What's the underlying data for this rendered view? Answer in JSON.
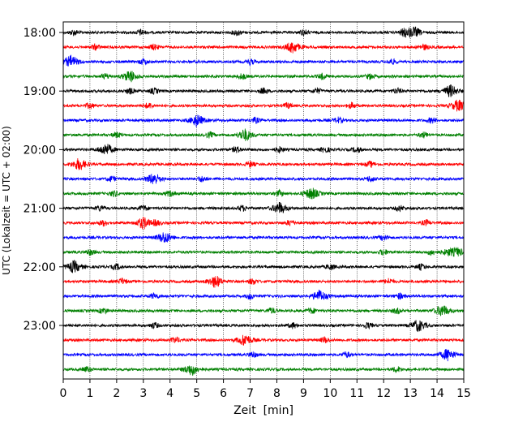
{
  "chart_data": {
    "type": "line",
    "title": "",
    "xlabel": "Zeit  [min]",
    "ylabel": "UTC (Lokalzeit = UTC + 02:00)",
    "xlim": [
      0,
      15
    ],
    "x_ticks": [
      "0",
      "1",
      "2",
      "3",
      "4",
      "5",
      "6",
      "7",
      "8",
      "9",
      "10",
      "11",
      "12",
      "13",
      "14",
      "15"
    ],
    "y_tick_labels": [
      "18:00",
      "19:00",
      "20:00",
      "21:00",
      "22:00",
      "23:00"
    ],
    "row_start_time": "18:00",
    "row_interval_minutes": 15,
    "trace_colors": [
      "#000000",
      "#ff0000",
      "#0000ff",
      "#008000"
    ],
    "vertical_grid": "dotted",
    "series": [
      {
        "row_start": "18:00",
        "color": "#000000",
        "events_min": [
          0.4,
          2.9,
          6.5,
          9.0,
          12.8,
          13.2
        ],
        "max_amplitude_min": 13.0
      },
      {
        "row_start": "18:15",
        "color": "#ff0000",
        "events_min": [
          1.2,
          3.4,
          8.6,
          13.5
        ],
        "max_amplitude_min": 8.6
      },
      {
        "row_start": "18:30",
        "color": "#0000ff",
        "events_min": [
          0.3,
          3.0,
          7.0,
          12.3
        ],
        "max_amplitude_min": 0.3
      },
      {
        "row_start": "18:45",
        "color": "#008000",
        "events_min": [
          1.6,
          2.5,
          6.7,
          9.7,
          11.5
        ],
        "max_amplitude_min": 2.5
      },
      {
        "row_start": "19:00",
        "color": "#000000",
        "events_min": [
          2.5,
          3.4,
          7.5,
          9.5,
          12.5,
          14.5
        ],
        "max_amplitude_min": 14.5
      },
      {
        "row_start": "19:15",
        "color": "#ff0000",
        "events_min": [
          1.0,
          3.2,
          8.4,
          10.8,
          14.8
        ],
        "max_amplitude_min": 14.8
      },
      {
        "row_start": "19:30",
        "color": "#0000ff",
        "events_min": [
          5.0,
          7.2,
          10.3,
          13.8
        ],
        "max_amplitude_min": 5.0
      },
      {
        "row_start": "19:45",
        "color": "#008000",
        "events_min": [
          2.0,
          5.5,
          6.8,
          13.5
        ],
        "max_amplitude_min": 6.8
      },
      {
        "row_start": "20:00",
        "color": "#000000",
        "events_min": [
          1.6,
          6.5,
          8.1,
          9.8,
          11.0
        ],
        "max_amplitude_min": 1.6
      },
      {
        "row_start": "20:15",
        "color": "#ff0000",
        "events_min": [
          0.6,
          7.0,
          11.5
        ],
        "max_amplitude_min": 0.6
      },
      {
        "row_start": "20:30",
        "color": "#0000ff",
        "events_min": [
          1.8,
          3.4,
          5.2,
          11.5
        ],
        "max_amplitude_min": 3.4
      },
      {
        "row_start": "20:45",
        "color": "#008000",
        "events_min": [
          1.9,
          4.0,
          8.1,
          9.3
        ],
        "max_amplitude_min": 9.3
      },
      {
        "row_start": "21:00",
        "color": "#000000",
        "events_min": [
          1.4,
          3.0,
          6.7,
          8.1,
          12.6
        ],
        "max_amplitude_min": 8.1
      },
      {
        "row_start": "21:15",
        "color": "#ff0000",
        "events_min": [
          1.5,
          3.0,
          3.5,
          8.5,
          13.6
        ],
        "max_amplitude_min": 3.0
      },
      {
        "row_start": "21:30",
        "color": "#0000ff",
        "events_min": [
          3.8,
          12.0
        ],
        "max_amplitude_min": 3.8
      },
      {
        "row_start": "21:45",
        "color": "#008000",
        "events_min": [
          1.0,
          12.0,
          13.8,
          14.8
        ],
        "max_amplitude_min": 14.5
      },
      {
        "row_start": "22:00",
        "color": "#000000",
        "events_min": [
          0.4,
          2.0,
          10.0,
          13.4
        ],
        "max_amplitude_min": 0.4
      },
      {
        "row_start": "22:15",
        "color": "#ff0000",
        "events_min": [
          2.2,
          5.7,
          7.1,
          12.2
        ],
        "max_amplitude_min": 5.7
      },
      {
        "row_start": "22:30",
        "color": "#0000ff",
        "events_min": [
          3.4,
          7.0,
          9.6,
          12.6
        ],
        "max_amplitude_min": 9.6
      },
      {
        "row_start": "22:45",
        "color": "#008000",
        "events_min": [
          1.5,
          7.8,
          9.3,
          12.5,
          14.2
        ],
        "max_amplitude_min": 14.2
      },
      {
        "row_start": "23:00",
        "color": "#000000",
        "events_min": [
          3.4,
          8.6,
          11.4,
          13.3
        ],
        "max_amplitude_min": 13.3
      },
      {
        "row_start": "23:15",
        "color": "#ff0000",
        "events_min": [
          4.2,
          6.8,
          9.8
        ],
        "max_amplitude_min": 6.8
      },
      {
        "row_start": "23:30",
        "color": "#0000ff",
        "events_min": [
          7.1,
          10.6,
          14.4
        ],
        "max_amplitude_min": 14.4
      },
      {
        "row_start": "23:45",
        "color": "#008000",
        "events_min": [
          0.9,
          4.8,
          12.5
        ],
        "max_amplitude_min": 4.8
      }
    ]
  }
}
